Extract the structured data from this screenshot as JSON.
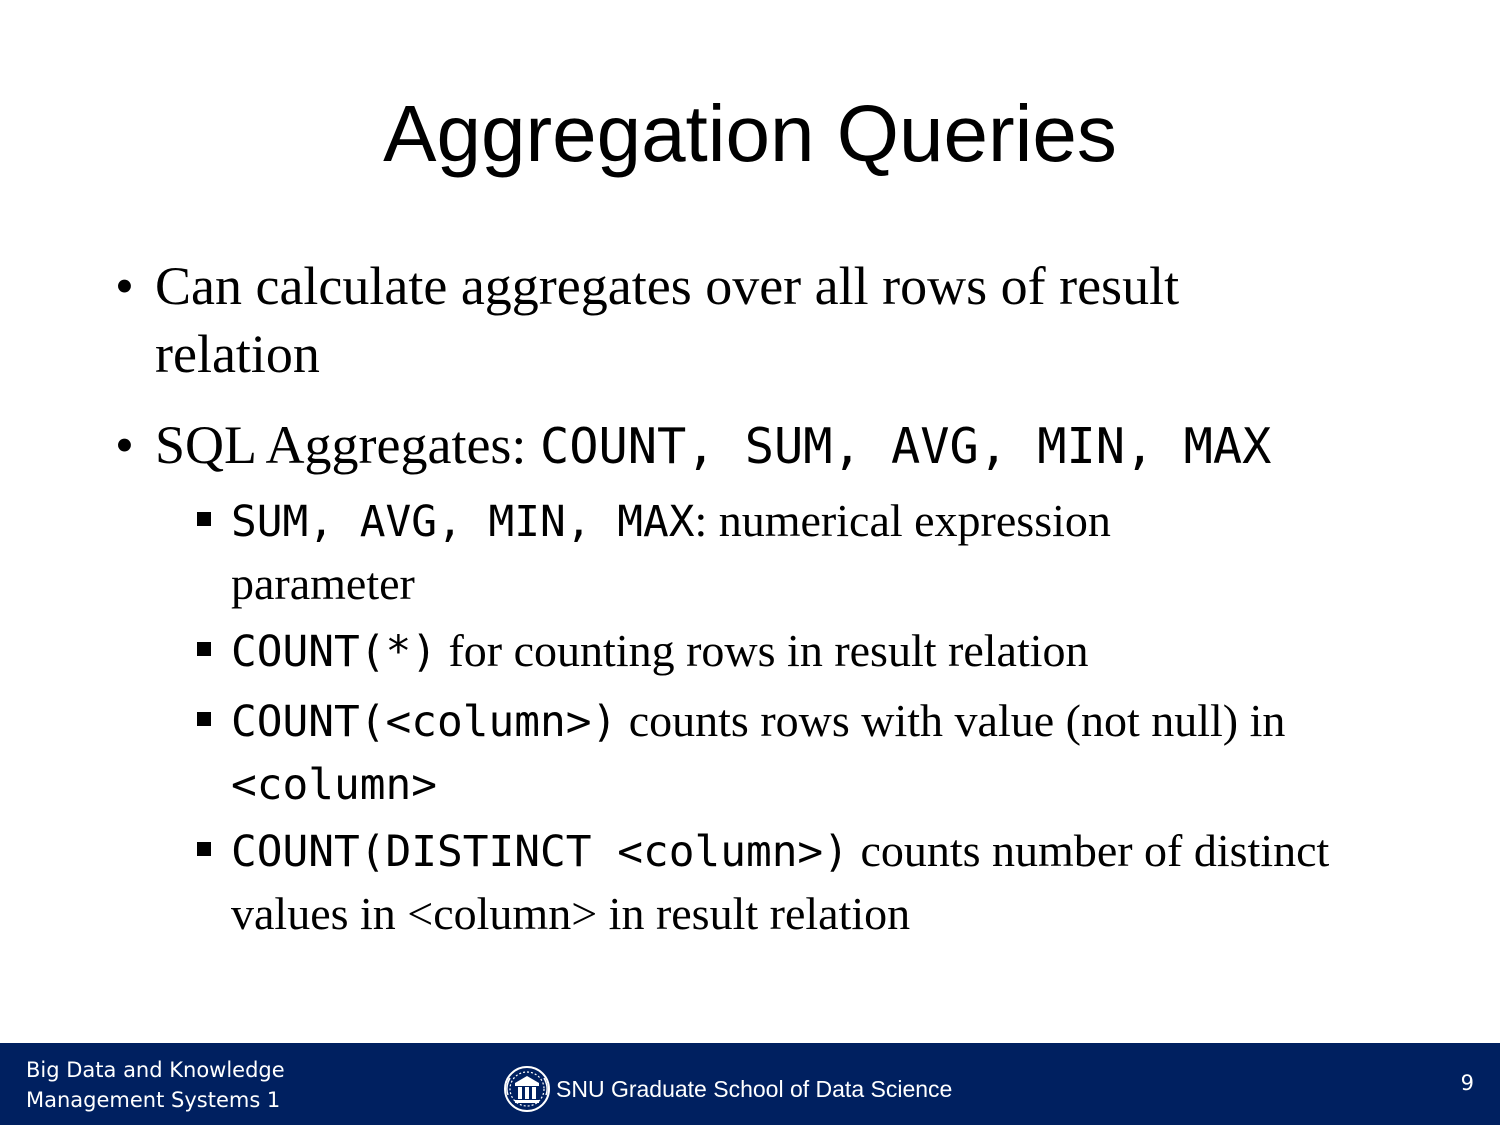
{
  "slide": {
    "title": "Aggregation Queries",
    "bullets": [
      {
        "text": "Can calculate aggregates over all rows of result relation"
      },
      {
        "prefix": "SQL Aggregates: ",
        "code": "COUNT, SUM, AVG, MIN, MAX",
        "subs": [
          {
            "code": "SUM, AVG, MIN, MAX",
            "text": ": numerical expression parameter"
          },
          {
            "code": "COUNT(*)",
            "text": " for counting rows in result relation"
          },
          {
            "code": "COUNT(<column>)",
            "text": " counts rows with value (not null) in ",
            "code2": "<column>"
          },
          {
            "code": "COUNT(DISTINCT <column>)",
            "text": " counts number of distinct values in <column> in result relation"
          }
        ]
      }
    ]
  },
  "footer": {
    "course_line1": "Big Data and Knowledge",
    "course_line2": "Management Systems 1",
    "school": "SNU Graduate School of Data Science",
    "page_number": "9"
  },
  "colors": {
    "footer_bg": "#002060",
    "footer_text": "#ffffff"
  },
  "icons": {
    "logo": "snu-emblem-icon"
  }
}
